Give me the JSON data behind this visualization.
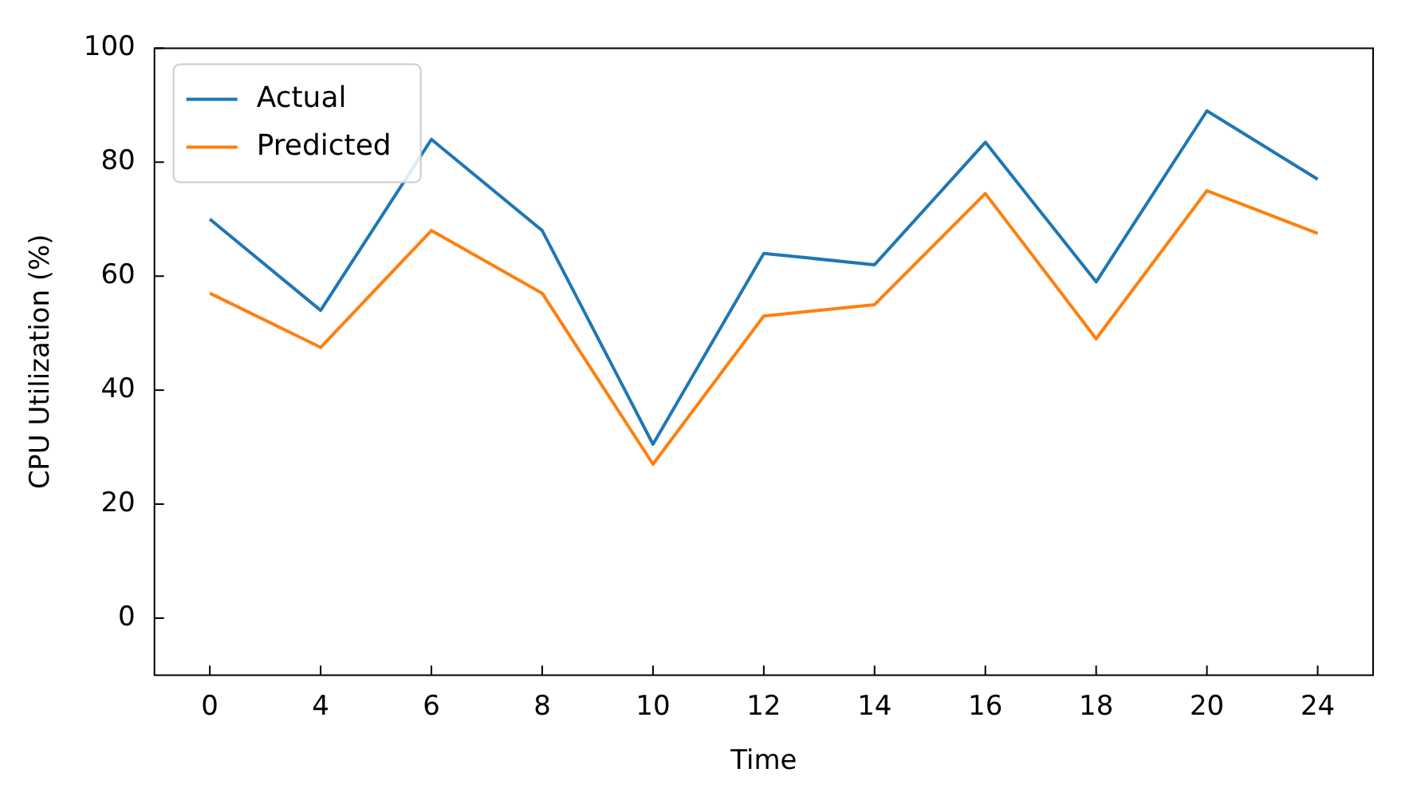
{
  "chart_data": {
    "type": "line",
    "xlabel": "Time",
    "ylabel": "CPU Utilization (%)",
    "categories": [
      "0",
      "4",
      "6",
      "8",
      "10",
      "12",
      "14",
      "16",
      "18",
      "20",
      "24"
    ],
    "series": [
      {
        "name": "Actual",
        "color": "#1f77b4",
        "values": [
          70,
          54,
          84,
          68,
          30.5,
          64,
          62,
          83.5,
          59,
          89,
          77
        ]
      },
      {
        "name": "Predicted",
        "color": "#ff7f0e",
        "values": [
          57,
          47.5,
          68,
          57,
          27,
          53,
          55,
          74.5,
          49,
          75,
          67.5
        ]
      }
    ],
    "ylim": [
      -10,
      100
    ],
    "yticks": [
      0,
      20,
      40,
      60,
      80,
      100
    ],
    "grid": false,
    "legend": "top left",
    "marker": "none",
    "line_style": "solid"
  }
}
